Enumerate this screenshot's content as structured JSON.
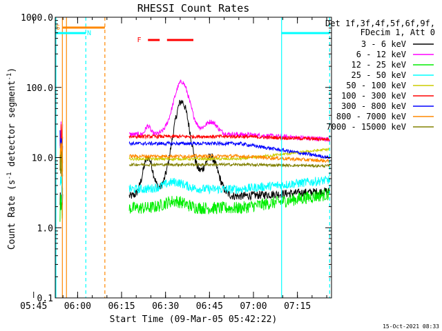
{
  "chart_data": {
    "type": "line",
    "title": "RHESSI Count Rates",
    "xlabel": "Start Time (09-Mar-05 05:42:22)",
    "ylabel_main": "Count Rate (s",
    "ylabel_sup1": "-1",
    "ylabel_mid": " detector segment",
    "ylabel_sup2": "-1",
    "ylabel_end": ")",
    "y_scale": "log",
    "ylim": [
      0.1,
      1000
    ],
    "xlim_minutes": [
      -7.63,
      86.63
    ],
    "y_ticks": [
      {
        "value": 0.1,
        "label": "0.1"
      },
      {
        "value": 1,
        "label": "1.0"
      },
      {
        "value": 10,
        "label": "10.0"
      },
      {
        "value": 100,
        "label": "100.0"
      },
      {
        "value": 1000,
        "label": "1000.0"
      }
    ],
    "x_ticks": [
      {
        "min": -15,
        "label": "05:45"
      },
      {
        "min": 0,
        "label": "06:00"
      },
      {
        "min": 15,
        "label": "06:15"
      },
      {
        "min": 30,
        "label": "06:30"
      },
      {
        "min": 45,
        "label": "06:45"
      },
      {
        "min": 60,
        "label": "07:00"
      },
      {
        "min": 75,
        "label": "07:15"
      }
    ],
    "legend_header": [
      "Det 1f,3f,4f,5f,6f,9f,",
      "FDecim 1, Att 0"
    ],
    "series": [
      {
        "name": "3 - 6 keV",
        "color": "#000000",
        "base_log": 0.45,
        "bumps": [
          [
            24,
            2.5,
            0.55
          ],
          [
            35.5,
            4.5,
            1.35
          ],
          [
            45.5,
            3.5,
            0.55
          ]
        ],
        "noise": 0.06,
        "tail_log": 0.52
      },
      {
        "name": "6 - 12 keV",
        "color": "#ff00ff",
        "base_log": 1.33,
        "bumps": [
          [
            24,
            1.2,
            0.12
          ],
          [
            35.5,
            4,
            0.75
          ],
          [
            45.5,
            3,
            0.18
          ]
        ],
        "noise": 0.035,
        "tail_log": 1.26
      },
      {
        "name": "12 - 25 keV",
        "color": "#00ee00",
        "base_log": 0.28,
        "bumps": [
          [
            33,
            5,
            0.1
          ]
        ],
        "noise": 0.09,
        "tail_log": 0.48
      },
      {
        "name": "25 - 50 keV",
        "color": "#00ffff",
        "base_log": 0.55,
        "bumps": [
          [
            33,
            5,
            0.1
          ]
        ],
        "noise": 0.065,
        "tail_log": 0.68
      },
      {
        "name": "50 - 100 keV",
        "color": "#cccc00",
        "base_log": 0.98,
        "bumps": [],
        "noise": 0.02,
        "tail_log": 1.12
      },
      {
        "name": "100 - 300 keV",
        "color": "#ff0000",
        "base_log": 1.3,
        "bumps": [],
        "noise": 0.025,
        "tail_log": 1.26
      },
      {
        "name": "300 - 800 keV",
        "color": "#0000ff",
        "base_log": 1.2,
        "bumps": [],
        "noise": 0.025,
        "tail_log": 1.0
      },
      {
        "name": "800 - 7000 keV",
        "color": "#ff8800",
        "base_log": 1.02,
        "bumps": [],
        "noise": 0.025,
        "tail_log": 0.95
      },
      {
        "name": "7000 - 15000 keV",
        "color": "#808000",
        "base_log": 0.9,
        "bumps": [],
        "noise": 0.02,
        "tail_log": 0.88
      }
    ],
    "data_window_min": [
      17.6,
      86.0
    ],
    "early_segment_min": [
      -6,
      -5.1
    ],
    "night_bars": [
      {
        "start": -7.6,
        "end": 2.8,
        "color": "#00ffff"
      },
      {
        "start": 69.6,
        "end": 86.0,
        "color": "#00ffff"
      }
    ],
    "saa_bar": {
      "start": -5.1,
      "end": 9.3,
      "color": "#ff8800"
    },
    "flare_bars": [
      {
        "start": 24.0,
        "end": 28.0,
        "color": "#ff0000"
      },
      {
        "start": 30.5,
        "end": 39.5,
        "color": "#ff0000"
      }
    ],
    "markers": [
      {
        "label": "S",
        "color": "#ff8800",
        "min": -7.4
      },
      {
        "label": "N",
        "color": "#00ffff",
        "min": 3.2
      },
      {
        "label": "F",
        "color": "#ff0000",
        "min": 20.3
      }
    ],
    "vlines": [
      {
        "min": -7.4,
        "color": "#00ffff",
        "dash": false
      },
      {
        "min": -5.2,
        "color": "#ff8800",
        "dash": false
      },
      {
        "min": -3.8,
        "color": "#ff8800",
        "dash": false
      },
      {
        "min": 2.8,
        "color": "#00ffff",
        "dash": true
      },
      {
        "min": 9.3,
        "color": "#ff8800",
        "dash": true
      },
      {
        "min": 69.6,
        "color": "#00ffff",
        "dash": false
      },
      {
        "min": 86.0,
        "color": "#00ffff",
        "dash": true
      }
    ],
    "timestamp": "15-Oct-2021 08:33"
  }
}
